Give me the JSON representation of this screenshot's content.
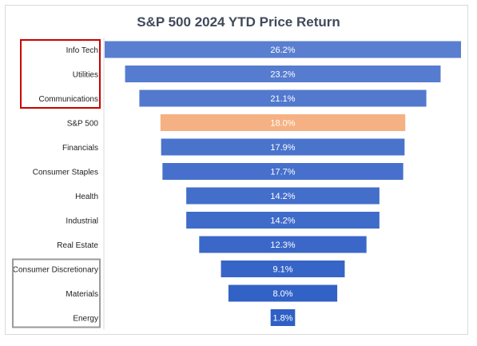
{
  "chart_data": {
    "type": "bar",
    "orientation": "horizontal-funnel",
    "title": "S&P 500 2024 YTD Price Return",
    "categories": [
      "Info Tech",
      "Utilities",
      "Communications",
      "S&P 500",
      "Financials",
      "Consumer Staples",
      "Health",
      "Industrial",
      "Real Estate",
      "Consumer Discretionary",
      "Materials",
      "Energy"
    ],
    "values": [
      26.2,
      23.2,
      21.1,
      18.0,
      17.9,
      17.7,
      14.2,
      14.2,
      12.3,
      9.1,
      8.0,
      1.8
    ],
    "value_labels": [
      "26.2%",
      "23.2%",
      "21.1%",
      "18.0%",
      "17.9%",
      "17.7%",
      "14.2%",
      "14.2%",
      "12.3%",
      "9.1%",
      "8.0%",
      "1.8%"
    ],
    "value_format": "percent",
    "highlight_category": "S&P 500",
    "colors": {
      "bars_top": "#5a7fd0",
      "bars_bottom": "#2f5fc5",
      "highlight": "#f5b183",
      "top_group_box": "#cc0000",
      "bottom_group_box": "#9a9a9a"
    },
    "grouped_categories": {
      "top_box": [
        "Info Tech",
        "Utilities",
        "Communications"
      ],
      "bottom_box": [
        "Consumer Discretionary",
        "Materials",
        "Energy"
      ]
    },
    "grid": false,
    "legend": "none"
  }
}
